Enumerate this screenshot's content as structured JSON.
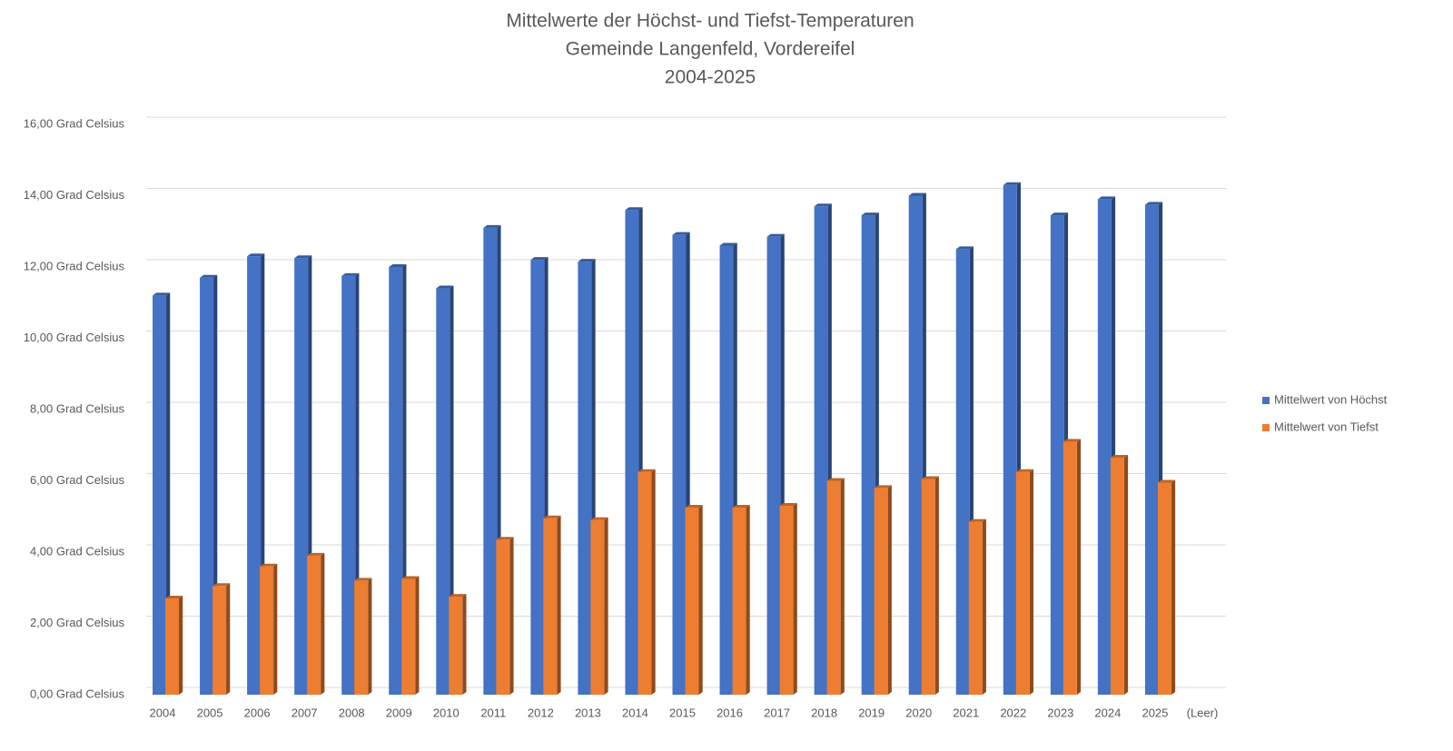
{
  "chart_data": {
    "type": "bar3d",
    "title": "Mittelwerte der Höchst- und Tiefst-Temperaturen",
    "subtitle": [
      "Gemeinde Langenfeld, Vordereifel",
      "2004-2025"
    ],
    "categories": [
      "2004",
      "2005",
      "2006",
      "2007",
      "2008",
      "2009",
      "2010",
      "2011",
      "2012",
      "2013",
      "2014",
      "2015",
      "2016",
      "2017",
      "2018",
      "2019",
      "2020",
      "2021",
      "2022",
      "2023",
      "2024",
      "2025",
      "(Leer)"
    ],
    "series": [
      {
        "name": "Mittelwert von Höchst",
        "color": "#4472c4",
        "values": [
          11.2,
          11.7,
          12.3,
          12.25,
          11.75,
          12.0,
          11.4,
          13.1,
          12.2,
          12.15,
          13.6,
          12.9,
          12.6,
          12.85,
          13.7,
          13.45,
          14.0,
          12.5,
          14.3,
          13.45,
          13.9,
          13.75,
          null
        ]
      },
      {
        "name": "Mittelwert von Tiefst",
        "color": "#ed7d31",
        "values": [
          2.7,
          3.05,
          3.6,
          3.9,
          3.2,
          3.25,
          2.75,
          4.35,
          4.95,
          4.9,
          6.25,
          5.25,
          5.25,
          5.3,
          6.0,
          5.8,
          6.05,
          4.85,
          6.25,
          7.1,
          6.65,
          5.95,
          null
        ]
      }
    ],
    "ylim": [
      0,
      16
    ],
    "yticks": [
      {
        "value": 0,
        "label": "0,00 Grad Celsius"
      },
      {
        "value": 2,
        "label": "2,00 Grad Celsius"
      },
      {
        "value": 4,
        "label": "4,00 Grad Celsius"
      },
      {
        "value": 6,
        "label": "6,00 Grad Celsius"
      },
      {
        "value": 8,
        "label": "8,00 Grad Celsius"
      },
      {
        "value": 10,
        "label": "10,00 Grad Celsius"
      },
      {
        "value": 12,
        "label": "12,00 Grad Celsius"
      },
      {
        "value": 14,
        "label": "14,00 Grad Celsius"
      },
      {
        "value": 16,
        "label": "16,00 Grad Celsius"
      }
    ],
    "grid": true,
    "legend": "right"
  }
}
